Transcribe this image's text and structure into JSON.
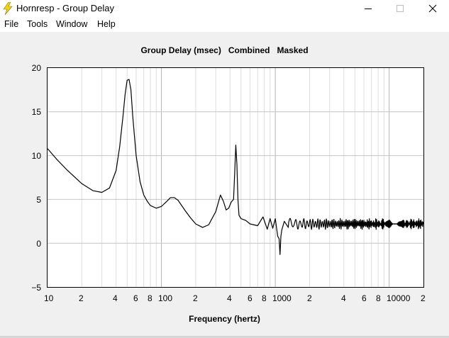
{
  "window": {
    "title": "Hornresp - Group Delay",
    "icon": "lightning-bolt-icon",
    "controls": [
      "minimize-icon",
      "maximize-icon",
      "close-icon"
    ]
  },
  "menu": [
    "File",
    "Tools",
    "Window",
    "Help"
  ],
  "plot_title": "Group Delay (msec)   Combined   Masked",
  "chart_data": {
    "type": "line",
    "title": "Group Delay (msec)   Combined   Masked",
    "xlabel": "Frequency (hertz)",
    "ylabel": "",
    "x_scale": "log",
    "xlim": [
      10,
      20000
    ],
    "ylim": [
      -5,
      20
    ],
    "grid": true,
    "y_ticks": [
      "20",
      "15",
      "10",
      "5",
      "0",
      "−5"
    ],
    "x_ticks": [
      "10",
      "2",
      "4",
      "6",
      "8",
      "100",
      "2",
      "4",
      "6",
      "8",
      "1000",
      "2",
      "4",
      "6",
      "8",
      "10000",
      "2"
    ],
    "series": [
      {
        "color": "#000000",
        "x": [
          10,
          12,
          15,
          20,
          25,
          30,
          35,
          40,
          43,
          46,
          48,
          50,
          52,
          54,
          56,
          60,
          65,
          70,
          75,
          80,
          90,
          100,
          110,
          120,
          130,
          140,
          160,
          180,
          200,
          230,
          260,
          300,
          330,
          350,
          370,
          390,
          410,
          430,
          440,
          450,
          460,
          470,
          480,
          500,
          550,
          600,
          700,
          780,
          850,
          900,
          950,
          1000,
          1050,
          1080,
          1100,
          1120,
          1140,
          1200,
          1300
        ],
        "y": [
          10.8,
          9.6,
          8.3,
          6.8,
          6.0,
          5.8,
          6.3,
          8.3,
          11.0,
          14.5,
          17.0,
          18.6,
          18.7,
          17.5,
          14.5,
          10.0,
          7.0,
          5.5,
          4.8,
          4.3,
          4.0,
          4.2,
          4.7,
          5.2,
          5.2,
          4.9,
          3.8,
          2.9,
          2.2,
          1.8,
          2.1,
          3.6,
          5.5,
          4.8,
          3.8,
          4.0,
          4.7,
          5.0,
          8.0,
          11.2,
          9.0,
          5.0,
          3.2,
          2.8,
          2.6,
          2.2,
          2.0,
          3.0,
          1.6,
          2.8,
          1.7,
          2.8,
          0.8,
          0.5,
          -1.3,
          0.8,
          1.5,
          2.5,
          1.8
        ]
      }
    ],
    "hf_ripple": {
      "from": 1300,
      "to": 20000,
      "mean": 2.2,
      "amplitude": 0.55
    }
  }
}
